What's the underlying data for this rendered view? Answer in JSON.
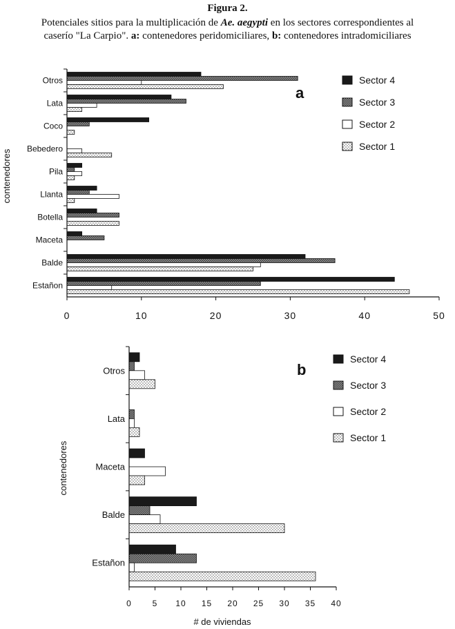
{
  "figure": {
    "title": "Figura 2.",
    "caption_line1_pre": "Potenciales sitios para la multiplicación de ",
    "caption_species": "Ae. aegypti",
    "caption_line1_post": "  en los sectores correspondientes al",
    "caption_line2_pre": "caserío \"La Carpio\". ",
    "caption_a_label": "a:",
    "caption_a_text": " contenedores peridomiciliares, ",
    "caption_b_label": "b:",
    "caption_b_text": " contenedores intradomiciliares"
  },
  "colors": {
    "sector4": "#1a1a1a",
    "sector3": "#7a7a7a",
    "sector2": "#ffffff",
    "sector1": "#e6e6e6",
    "axis": "#111111"
  },
  "chart_data": [
    {
      "type": "bar",
      "orientation": "horizontal",
      "panel_letter": "a",
      "title": "",
      "ylabel": "contenedores",
      "xlabel": "",
      "xlim": [
        0,
        50
      ],
      "xticks": [
        "0",
        "10",
        "20",
        "30",
        "40",
        "50"
      ],
      "categories": [
        "Otros",
        "Lata",
        "Coco",
        "Bebedero",
        "Pila",
        "Llanta",
        "Botella",
        "Maceta",
        "Balde",
        "Estañon"
      ],
      "legend_position": "right",
      "series": [
        {
          "name": "Sector 4",
          "values": [
            18,
            14,
            11,
            0,
            2,
            4,
            4,
            2,
            32,
            44
          ]
        },
        {
          "name": "Sector 3",
          "values": [
            31,
            16,
            3,
            0,
            1,
            3,
            7,
            5,
            36,
            26
          ]
        },
        {
          "name": "Sector 2",
          "values": [
            10,
            4,
            0,
            2,
            2,
            7,
            0,
            0,
            26,
            6
          ]
        },
        {
          "name": "Sector 1",
          "values": [
            21,
            2,
            1,
            6,
            1,
            1,
            7,
            0,
            25,
            46
          ]
        }
      ]
    },
    {
      "type": "bar",
      "orientation": "horizontal",
      "panel_letter": "b",
      "title": "",
      "ylabel": "contenedores",
      "xlabel": "# de viviendas",
      "xlim": [
        0,
        40
      ],
      "xticks": [
        "0",
        "5",
        "10",
        "15",
        "20",
        "25",
        "30",
        "35",
        "40"
      ],
      "categories": [
        "Otros",
        "Lata",
        "Maceta",
        "Balde",
        "Estañon"
      ],
      "legend_position": "right",
      "series": [
        {
          "name": "Sector 4",
          "values": [
            2,
            0,
            3,
            13,
            9
          ]
        },
        {
          "name": "Sector 3",
          "values": [
            1,
            1,
            0,
            4,
            13
          ]
        },
        {
          "name": "Sector 2",
          "values": [
            3,
            1,
            7,
            6,
            1
          ]
        },
        {
          "name": "Sector 1",
          "values": [
            5,
            2,
            3,
            30,
            36
          ]
        }
      ]
    }
  ]
}
